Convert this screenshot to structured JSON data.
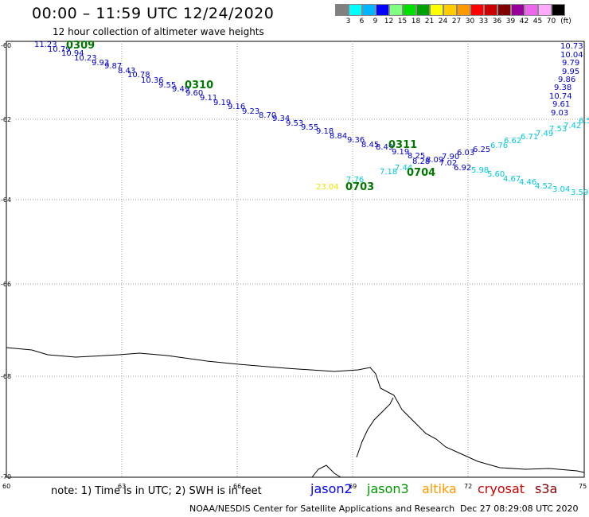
{
  "title": "00:00 – 11:59 UTC 12/24/2020",
  "subtitle": "12 hour collection of altimeter wave heights",
  "color_scale": {
    "unit_label": "(ft)",
    "levels": [
      "3",
      "6",
      "9",
      "12",
      "15",
      "18",
      "21",
      "24",
      "27",
      "30",
      "33",
      "36",
      "39",
      "42",
      "45",
      "70"
    ],
    "colors": [
      "#808080",
      "#00ffff",
      "#00b4ff",
      "#0000ff",
      "#80ff80",
      "#00e000",
      "#00a000",
      "#ffff00",
      "#ffcc00",
      "#ff9900",
      "#ff0000",
      "#cc0000",
      "#800000",
      "#990099",
      "#ee66ee",
      "#ffaaff",
      "#000000"
    ]
  },
  "map": {
    "lat_labels": [
      "-60",
      "-62",
      "-64",
      "-66",
      "-68",
      "-70"
    ],
    "lon_labels": [
      "60",
      "63",
      "66",
      "69",
      "72",
      "75"
    ]
  },
  "times": [
    {
      "label": "0309",
      "color": "#007700"
    },
    {
      "label": "0310",
      "color": "#007700"
    },
    {
      "label": "0311",
      "color": "#007700"
    },
    {
      "label": "0703",
      "color": "#007700"
    },
    {
      "label": "0704",
      "color": "#007700"
    }
  ],
  "tracks": [
    {
      "name": "jason3 0309-0311",
      "color": "#0000cc",
      "values": [
        "11.23",
        "10.79",
        "10.94",
        "10.23",
        "9.93",
        "9.87",
        "8.43",
        "10.78",
        "10.36",
        "9.55",
        "9.49",
        "9.60",
        "9.11",
        "9.19",
        "9.16",
        "9.23",
        "8.70",
        "9.34",
        "9.53",
        "9.55",
        "9.18",
        "8.84",
        "9.36",
        "8.45",
        "8.49",
        "9.19",
        "8.25",
        "8.28",
        "8.09",
        "7.90",
        "7.02",
        "6.92",
        "6.03",
        "6.25"
      ]
    },
    {
      "name": "jason3 0704",
      "color": "#00c8d8",
      "values": [
        "7.76",
        "7.18",
        "7.44",
        "6.76",
        "6.62",
        "6.71",
        "7.49",
        "7.53",
        "7.42",
        "6.5",
        "5.98",
        "5.60",
        "4.67",
        "4.46",
        "4.52",
        "3.04",
        "3.59"
      ]
    },
    {
      "name": "jason2 column",
      "color": "#0000cc",
      "values": [
        "10.73",
        "10.04",
        "9.79",
        "9.95",
        "9.86",
        "9.38",
        "10.74",
        "9.61",
        "9.03"
      ]
    },
    {
      "name": "altika",
      "color": "#e8e800",
      "values": [
        "23.04"
      ]
    }
  ],
  "footer": {
    "note": "note: 1) Time is in UTC; 2) SWH is in feet",
    "satellites": [
      {
        "name": "jason2",
        "color": "#0000ff"
      },
      {
        "name": "jason3",
        "color": "#009900"
      },
      {
        "name": "altika",
        "color": "#ff9900"
      },
      {
        "name": "cryosat",
        "color": "#cc0000"
      },
      {
        "name": "s3a",
        "color": "#880000"
      }
    ],
    "credit": "NOAA/NESDIS Center for Satellite Applications and Research",
    "timestamp": "Dec 27 08:29:08 UTC 2020"
  }
}
